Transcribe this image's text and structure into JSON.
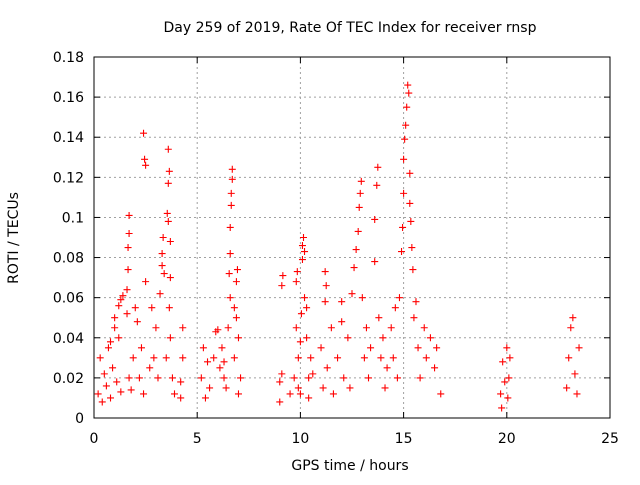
{
  "chart_data": {
    "type": "scatter",
    "title": "Day 259 of 2019, Rate Of TEC Index for receiver rnsp",
    "xlabel": "GPS time / hours",
    "ylabel": "ROTI / TECUs",
    "xlim": [
      0,
      25
    ],
    "ylim": [
      0,
      0.18
    ],
    "xticks": [
      0,
      5,
      10,
      15,
      20,
      25
    ],
    "xtick_labels": [
      "0",
      "5",
      "10",
      "15",
      "20",
      "25"
    ],
    "yticks": [
      0,
      0.02,
      0.04,
      0.06,
      0.08,
      0.1,
      0.12,
      0.14,
      0.16,
      0.18
    ],
    "ytick_labels": [
      "0",
      "0.02",
      "0.04",
      "0.06",
      "0.08",
      "0.1",
      "0.12",
      "0.14",
      "0.16",
      "0.18"
    ],
    "grid": true,
    "marker": "+",
    "color": "#ff0000",
    "series": [
      {
        "name": "ROTI",
        "points": [
          [
            0.2,
            0.012
          ],
          [
            0.3,
            0.03
          ],
          [
            0.4,
            0.008
          ],
          [
            0.5,
            0.022
          ],
          [
            0.6,
            0.016
          ],
          [
            0.7,
            0.035
          ],
          [
            0.8,
            0.01
          ],
          [
            0.9,
            0.025
          ],
          [
            1.0,
            0.05
          ],
          [
            1.1,
            0.018
          ],
          [
            1.2,
            0.04
          ],
          [
            1.3,
            0.013
          ],
          [
            1.2,
            0.056
          ],
          [
            1.0,
            0.045
          ],
          [
            0.8,
            0.038
          ],
          [
            1.4,
            0.061
          ],
          [
            1.3,
            0.059
          ],
          [
            1.7,
            0.02
          ],
          [
            1.8,
            0.014
          ],
          [
            1.6,
            0.052
          ],
          [
            1.6,
            0.064
          ],
          [
            1.65,
            0.074
          ],
          [
            1.65,
            0.085
          ],
          [
            1.7,
            0.092
          ],
          [
            1.7,
            0.101
          ],
          [
            1.9,
            0.03
          ],
          [
            2.0,
            0.055
          ],
          [
            2.1,
            0.048
          ],
          [
            2.2,
            0.02
          ],
          [
            2.3,
            0.035
          ],
          [
            2.4,
            0.012
          ],
          [
            2.4,
            0.142
          ],
          [
            2.45,
            0.129
          ],
          [
            2.5,
            0.126
          ],
          [
            2.5,
            0.068
          ],
          [
            2.7,
            0.025
          ],
          [
            2.8,
            0.055
          ],
          [
            2.9,
            0.03
          ],
          [
            3.0,
            0.045
          ],
          [
            3.1,
            0.02
          ],
          [
            3.2,
            0.062
          ],
          [
            3.3,
            0.076
          ],
          [
            3.3,
            0.082
          ],
          [
            3.35,
            0.09
          ],
          [
            3.4,
            0.072
          ],
          [
            3.5,
            0.03
          ],
          [
            3.6,
            0.134
          ],
          [
            3.65,
            0.123
          ],
          [
            3.6,
            0.117
          ],
          [
            3.55,
            0.102
          ],
          [
            3.6,
            0.098
          ],
          [
            3.7,
            0.088
          ],
          [
            3.7,
            0.07
          ],
          [
            3.65,
            0.055
          ],
          [
            3.7,
            0.04
          ],
          [
            3.8,
            0.02
          ],
          [
            3.9,
            0.012
          ],
          [
            4.2,
            0.01
          ],
          [
            4.3,
            0.03
          ],
          [
            4.3,
            0.045
          ],
          [
            4.2,
            0.018
          ],
          [
            5.2,
            0.02
          ],
          [
            5.3,
            0.035
          ],
          [
            5.4,
            0.01
          ],
          [
            5.5,
            0.028
          ],
          [
            5.6,
            0.015
          ],
          [
            5.8,
            0.03
          ],
          [
            5.9,
            0.043
          ],
          [
            6.0,
            0.044
          ],
          [
            6.1,
            0.025
          ],
          [
            6.2,
            0.035
          ],
          [
            6.3,
            0.02
          ],
          [
            6.5,
            0.045
          ],
          [
            6.6,
            0.06
          ],
          [
            6.55,
            0.072
          ],
          [
            6.6,
            0.082
          ],
          [
            6.6,
            0.095
          ],
          [
            6.65,
            0.106
          ],
          [
            6.65,
            0.112
          ],
          [
            6.7,
            0.119
          ],
          [
            6.7,
            0.124
          ],
          [
            6.8,
            0.055
          ],
          [
            6.9,
            0.068
          ],
          [
            6.95,
            0.074
          ],
          [
            7.0,
            0.04
          ],
          [
            7.1,
            0.02
          ],
          [
            6.8,
            0.03
          ],
          [
            6.4,
            0.015
          ],
          [
            6.3,
            0.028
          ],
          [
            7.0,
            0.012
          ],
          [
            6.9,
            0.05
          ],
          [
            9.0,
            0.018
          ],
          [
            9.0,
            0.008
          ],
          [
            9.1,
            0.022
          ],
          [
            9.1,
            0.066
          ],
          [
            9.15,
            0.071
          ],
          [
            9.5,
            0.012
          ],
          [
            9.7,
            0.02
          ],
          [
            9.8,
            0.045
          ],
          [
            9.8,
            0.068
          ],
          [
            9.85,
            0.073
          ],
          [
            9.9,
            0.03
          ],
          [
            10.0,
            0.038
          ],
          [
            10.05,
            0.052
          ],
          [
            10.1,
            0.079
          ],
          [
            10.1,
            0.086
          ],
          [
            10.15,
            0.09
          ],
          [
            10.2,
            0.083
          ],
          [
            10.2,
            0.06
          ],
          [
            10.3,
            0.04
          ],
          [
            10.4,
            0.02
          ],
          [
            10.5,
            0.03
          ],
          [
            10.0,
            0.012
          ],
          [
            9.9,
            0.015
          ],
          [
            10.3,
            0.055
          ],
          [
            10.4,
            0.01
          ],
          [
            10.6,
            0.022
          ],
          [
            11.0,
            0.035
          ],
          [
            11.1,
            0.015
          ],
          [
            11.2,
            0.058
          ],
          [
            11.2,
            0.073
          ],
          [
            11.25,
            0.066
          ],
          [
            11.3,
            0.025
          ],
          [
            11.5,
            0.045
          ],
          [
            11.6,
            0.012
          ],
          [
            11.8,
            0.03
          ],
          [
            12.0,
            0.048
          ],
          [
            12.0,
            0.058
          ],
          [
            12.1,
            0.02
          ],
          [
            12.3,
            0.04
          ],
          [
            12.4,
            0.015
          ],
          [
            12.5,
            0.062
          ],
          [
            12.6,
            0.075
          ],
          [
            12.7,
            0.084
          ],
          [
            12.8,
            0.093
          ],
          [
            12.85,
            0.105
          ],
          [
            12.9,
            0.112
          ],
          [
            12.95,
            0.118
          ],
          [
            13.0,
            0.06
          ],
          [
            13.1,
            0.03
          ],
          [
            13.2,
            0.045
          ],
          [
            13.3,
            0.02
          ],
          [
            13.4,
            0.035
          ],
          [
            13.6,
            0.078
          ],
          [
            13.6,
            0.099
          ],
          [
            13.7,
            0.116
          ],
          [
            13.75,
            0.125
          ],
          [
            13.8,
            0.05
          ],
          [
            13.9,
            0.03
          ],
          [
            14.0,
            0.04
          ],
          [
            14.1,
            0.015
          ],
          [
            14.2,
            0.025
          ],
          [
            14.4,
            0.045
          ],
          [
            14.5,
            0.03
          ],
          [
            14.6,
            0.055
          ],
          [
            14.7,
            0.02
          ],
          [
            14.8,
            0.06
          ],
          [
            14.9,
            0.083
          ],
          [
            14.95,
            0.095
          ],
          [
            15.0,
            0.112
          ],
          [
            15.0,
            0.129
          ],
          [
            15.05,
            0.139
          ],
          [
            15.1,
            0.146
          ],
          [
            15.15,
            0.155
          ],
          [
            15.2,
            0.166
          ],
          [
            15.25,
            0.162
          ],
          [
            15.3,
            0.122
          ],
          [
            15.3,
            0.107
          ],
          [
            15.35,
            0.098
          ],
          [
            15.4,
            0.085
          ],
          [
            15.45,
            0.074
          ],
          [
            15.5,
            0.05
          ],
          [
            15.6,
            0.058
          ],
          [
            15.7,
            0.035
          ],
          [
            15.8,
            0.02
          ],
          [
            16.0,
            0.045
          ],
          [
            16.1,
            0.03
          ],
          [
            16.3,
            0.04
          ],
          [
            16.5,
            0.025
          ],
          [
            16.6,
            0.035
          ],
          [
            16.8,
            0.012
          ],
          [
            19.7,
            0.012
          ],
          [
            19.8,
            0.028
          ],
          [
            19.9,
            0.018
          ],
          [
            20.0,
            0.035
          ],
          [
            20.1,
            0.02
          ],
          [
            20.15,
            0.03
          ],
          [
            19.75,
            0.005
          ],
          [
            20.05,
            0.01
          ],
          [
            22.9,
            0.015
          ],
          [
            23.0,
            0.03
          ],
          [
            23.1,
            0.045
          ],
          [
            23.2,
            0.05
          ],
          [
            23.3,
            0.022
          ],
          [
            23.4,
            0.012
          ],
          [
            23.5,
            0.035
          ]
        ]
      }
    ]
  }
}
